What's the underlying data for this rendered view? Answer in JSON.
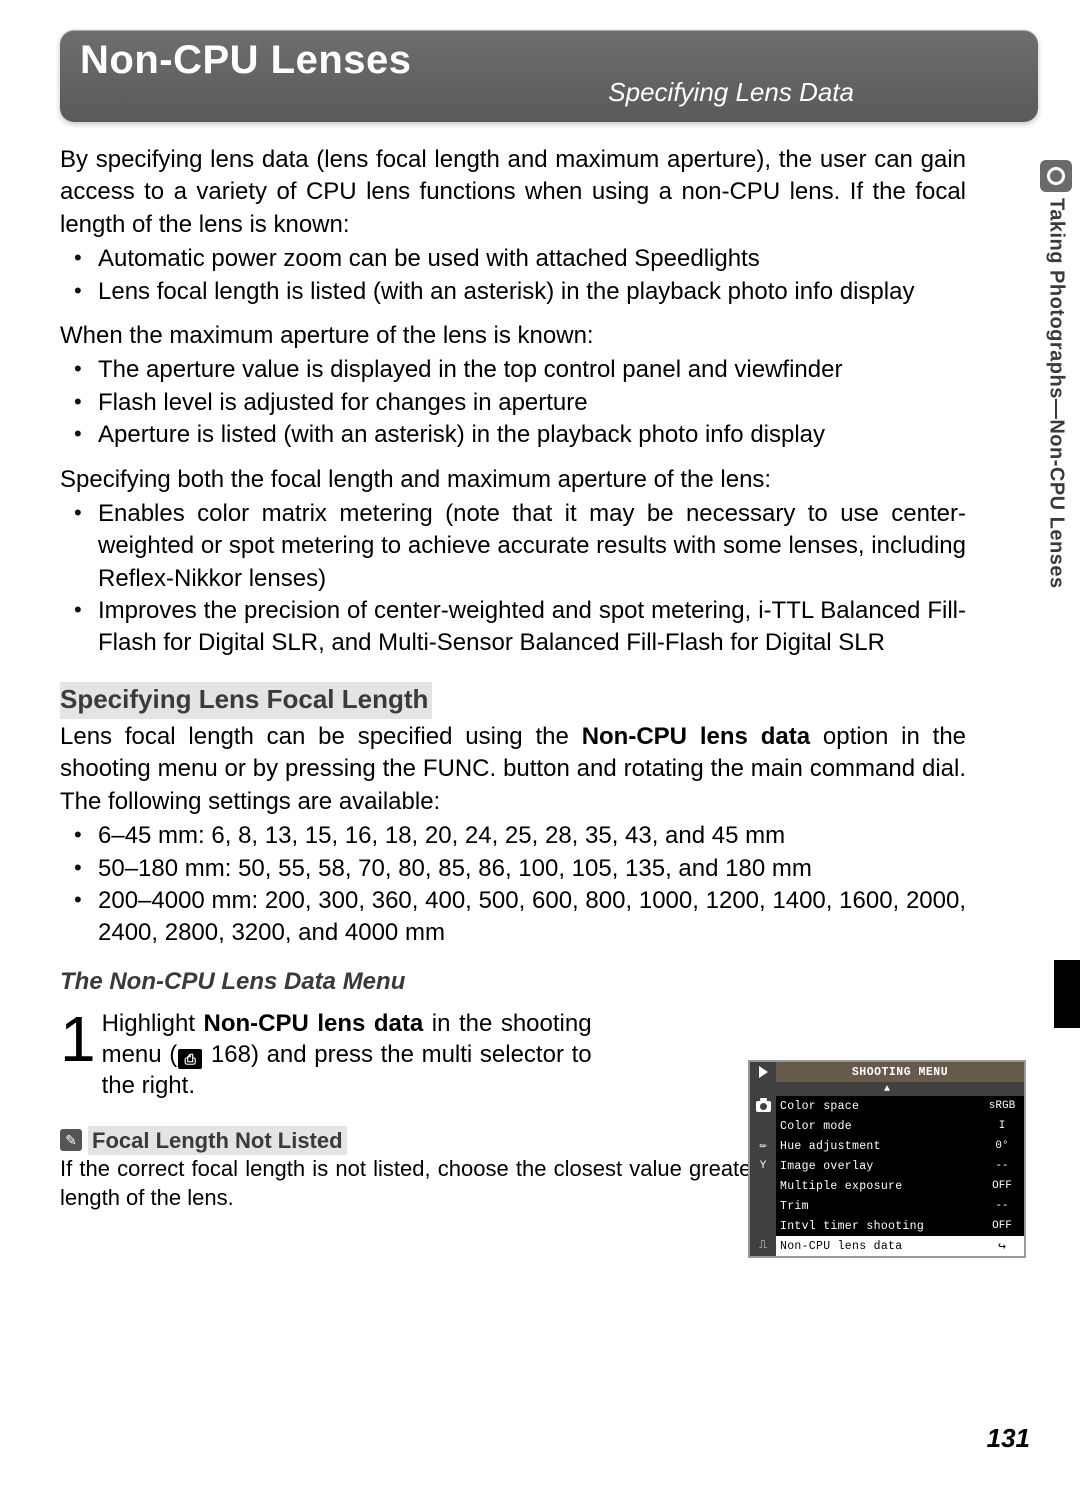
{
  "header": {
    "title": "Non-CPU Lenses",
    "subtitle": "Specifying Lens Data"
  },
  "sideTab": {
    "label": "Taking Photographs—Non-CPU Lenses"
  },
  "intro": "By specifying lens data (lens focal length and maximum aperture), the user can gain access to a variety of CPU lens functions when using a non-CPU lens.  If the focal length of the lens is known:",
  "bulletsA": [
    "Automatic power zoom can be used with attached Speedlights",
    "Lens focal length is listed (with an asterisk) in the playback photo info display"
  ],
  "para2": "When the maximum aperture of the lens is known:",
  "bulletsB": [
    "The aperture value is displayed in the top control panel and viewfinder",
    "Flash level is adjusted for changes in aperture",
    "Aperture is listed (with an asterisk) in the playback photo info display"
  ],
  "para3": "Specifying both the focal length and maximum aperture of the lens:",
  "bulletsC": [
    "Enables color matrix metering (note that it may be necessary to use center-weighted or spot metering to achieve accurate results with some lenses, including Reflex-Nikkor lenses)",
    "Improves the precision of center-weighted and spot metering, i-TTL Balanced Fill-Flash for Digital SLR, and Multi-Sensor Balanced Fill-Flash for Digital SLR"
  ],
  "sectionTitle": "Specifying Lens Focal Length",
  "sectionBody": {
    "pre": "Lens focal length can be specified using the ",
    "bold1": "Non-CPU lens data",
    "post": " option in the shooting menu or by pressing the FUNC. button and rotating the main command dial.  The following settings are available:"
  },
  "bulletsD": [
    "6–45 mm: 6, 8, 13, 15, 16, 18, 20, 24, 25, 28, 35, 43, and 45 mm",
    "50–180 mm: 50, 55, 58, 70, 80, 85, 86, 100, 105, 135, and 180 mm",
    "200–4000 mm: 200, 300, 360, 400, 500, 600, 800, 1000, 1200, 1400, 1600, 2000, 2400, 2800, 3200, and 4000 mm"
  ],
  "subItalic": "The Non-CPU Lens Data Menu",
  "step": {
    "num": "1",
    "pre": "Highlight ",
    "bold": "Non-CPU lens data",
    "mid": " in the shooting menu (",
    "ref": "168",
    "post": ") and press the multi selector to the right."
  },
  "menu": {
    "title": "SHOOTING MENU",
    "rows": [
      {
        "label": "Color space",
        "val": "sRGB"
      },
      {
        "label": "Color mode",
        "val": "I"
      },
      {
        "label": "Hue adjustment",
        "val": "0°"
      },
      {
        "label": "Image overlay",
        "val": "--"
      },
      {
        "label": "Multiple exposure",
        "val": "OFF"
      },
      {
        "label": "Trim",
        "val": "--"
      },
      {
        "label": "Intvl timer shooting",
        "val": "OFF"
      },
      {
        "label": "Non-CPU lens data",
        "val": ""
      }
    ],
    "selectedIndex": 7
  },
  "note": {
    "title": "Focal Length Not Listed",
    "body": "If the correct focal length is not listed, choose the closest value greater than the actual focal length of the lens."
  },
  "pageNumber": "131"
}
